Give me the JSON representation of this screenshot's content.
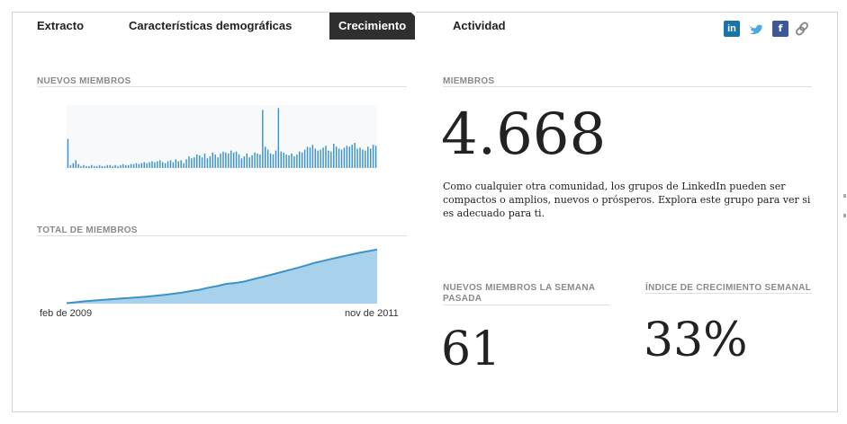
{
  "tabs": [
    {
      "label": "Extracto",
      "active": false
    },
    {
      "label": "Características demográficas",
      "active": false
    },
    {
      "label": "Crecimiento",
      "active": true
    },
    {
      "label": "Actividad",
      "active": false
    }
  ],
  "share_icons": [
    "linkedin-icon",
    "twitter-icon",
    "facebook-icon",
    "link-icon"
  ],
  "colors": {
    "accent": "#3d93c9",
    "area_fill": "#a8d1ec",
    "tab_active": "#2f2f2f"
  },
  "left": {
    "new_members_title": "NUEVOS MIEMBROS",
    "total_members_title": "TOTAL DE MIEMBROS",
    "x_start_label": "feb de 2009",
    "x_end_label": "nov de 2011"
  },
  "right": {
    "members_title": "MIEMBROS",
    "members_value": "4.668",
    "description": "Como cualquier otra comunidad, los grupos de LinkedIn pueden ser compactos o amplios, nuevos o prósperos. Explora este grupo para ver si es adecuado para ti.",
    "new_last_week_title": "NUEVOS MIEMBROS LA SEMANA PASADA",
    "new_last_week_value": "61",
    "growth_title": "ÍNDICE DE CRECIMIENTO SEMANAL",
    "growth_value": "33%"
  },
  "chart_data": [
    {
      "type": "bar",
      "title": "NUEVOS MIEMBROS",
      "x_range": [
        "feb de 2009",
        "nov de 2011"
      ],
      "values": [
        30,
        3,
        5,
        8,
        4,
        2,
        3,
        2,
        2,
        3,
        2,
        2,
        3,
        2,
        2,
        3,
        3,
        2,
        3,
        2,
        3,
        4,
        3,
        3,
        4,
        4,
        5,
        4,
        5,
        6,
        5,
        6,
        7,
        6,
        7,
        8,
        6,
        5,
        7,
        8,
        6,
        9,
        7,
        8,
        5,
        9,
        12,
        10,
        11,
        14,
        13,
        11,
        15,
        10,
        12,
        16,
        14,
        11,
        15,
        17,
        16,
        15,
        18,
        16,
        17,
        14,
        10,
        12,
        15,
        11,
        13,
        16,
        15,
        14,
        60,
        22,
        19,
        15,
        14,
        18,
        62,
        17,
        16,
        14,
        13,
        15,
        12,
        14,
        17,
        16,
        19,
        22,
        21,
        24,
        20,
        18,
        19,
        21,
        23,
        18,
        17,
        25,
        22,
        20,
        19,
        21,
        23,
        22,
        24,
        26,
        20,
        21,
        19,
        18,
        22,
        20,
        24,
        23
      ],
      "ylim": [
        0,
        65
      ]
    },
    {
      "type": "area",
      "title": "TOTAL DE MIEMBROS",
      "x_range": [
        "feb de 2009",
        "nov de 2011"
      ],
      "values": [
        40,
        120,
        200,
        260,
        320,
        380,
        430,
        480,
        540,
        600,
        680,
        760,
        850,
        950,
        1080,
        1200,
        1380,
        1520,
        1700,
        1780,
        1900,
        2100,
        2280,
        2480,
        2680,
        2880,
        3080,
        3300,
        3520,
        3700,
        3880,
        4050,
        4220,
        4380,
        4520,
        4668
      ],
      "ylim": [
        0,
        4800
      ]
    }
  ]
}
